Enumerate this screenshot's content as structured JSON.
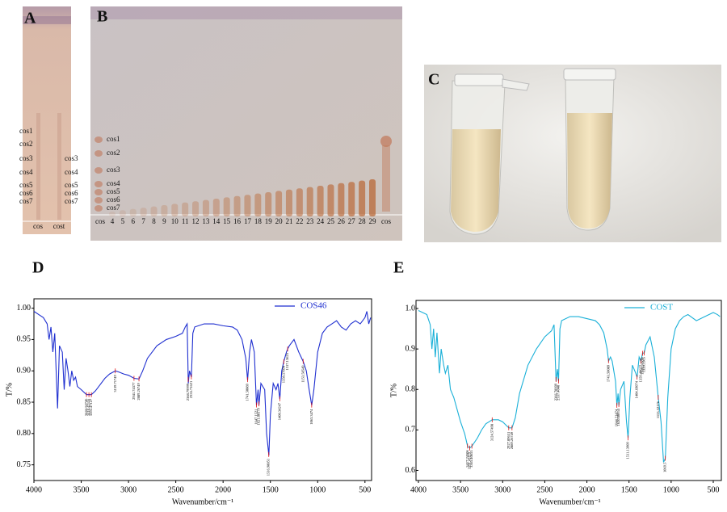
{
  "panels": {
    "A": {
      "label": "A",
      "left_labels": [
        "cos1",
        "cos2",
        "cos3",
        "cos4",
        "cos5",
        "cos6",
        "cos7"
      ],
      "right_labels": [
        "cos3",
        "cos4",
        "cos5",
        "cos6",
        "cos7"
      ],
      "lanes": [
        "cos",
        "cost"
      ]
    },
    "B": {
      "label": "B",
      "labels": [
        "cos1",
        "cos2",
        "cos3",
        "cos4",
        "cos5",
        "cos6",
        "cos7"
      ],
      "lanes": [
        "cos",
        "4",
        "5",
        "6",
        "7",
        "8",
        "9",
        "10",
        "11",
        "12",
        "13",
        "14",
        "15",
        "16",
        "17",
        "18",
        "19",
        "20",
        "21",
        "22",
        "23",
        "24",
        "25",
        "26",
        "27",
        "28",
        "29",
        "cos"
      ]
    },
    "C": {
      "label": "C"
    }
  },
  "chart_data": [
    {
      "type": "line",
      "panel": "D",
      "xlabel": "Wavenumber/cm⁻¹",
      "ylabel": "T/%",
      "xlim": [
        4000,
        430
      ],
      "ylim": [
        0.725,
        1.015
      ],
      "xticks": [
        4000,
        3500,
        3000,
        2500,
        2000,
        1500,
        1000,
        500
      ],
      "yticks": [
        0.75,
        {
          "value": 0.8,
          "label": "0.80"
        },
        0.85,
        {
          "value": 0.9,
          "label": "0.90"
        },
        0.95,
        {
          "value": 1,
          "label": "1.00"
        }
      ],
      "legend": "top-right",
      "x": [
        4000,
        3950,
        3900,
        3860,
        3840,
        3820,
        3800,
        3780,
        3750,
        3730,
        3700,
        3680,
        3660,
        3640,
        3620,
        3600,
        3580,
        3560,
        3540,
        3500,
        3444,
        3418,
        3392,
        3350,
        3300,
        3250,
        3200,
        3139,
        3100,
        3050,
        3000,
        2941,
        2889,
        2850,
        2800,
        2700,
        2600,
        2500,
        2430,
        2400,
        2380,
        2368,
        2355,
        2335,
        2320,
        2300,
        2200,
        2100,
        2000,
        1900,
        1850,
        1800,
        1760,
        1741,
        1720,
        1700,
        1670,
        1647,
        1630,
        1621,
        1600,
        1560,
        1540,
        1516,
        1500,
        1470,
        1440,
        1420,
        1400,
        1380,
        1358,
        1330,
        1317,
        1300,
        1250,
        1200,
        1153,
        1120,
        1090,
        1063,
        1040,
        1000,
        950,
        900,
        850,
        800,
        750,
        700,
        650,
        600,
        550,
        500,
        480,
        460,
        440
      ],
      "series": [
        {
          "name": "COS46",
          "color": "#1f2fd0",
          "values": [
            0.995,
            0.99,
            0.985,
            0.975,
            0.95,
            0.97,
            0.93,
            0.96,
            0.84,
            0.94,
            0.93,
            0.87,
            0.92,
            0.9,
            0.875,
            0.9,
            0.885,
            0.89,
            0.875,
            0.87,
            0.862,
            0.862,
            0.862,
            0.868,
            0.878,
            0.888,
            0.895,
            0.9,
            0.898,
            0.895,
            0.893,
            0.888,
            0.887,
            0.9,
            0.92,
            0.94,
            0.95,
            0.955,
            0.96,
            0.97,
            0.975,
            0.88,
            0.9,
            0.89,
            0.96,
            0.97,
            0.975,
            0.975,
            0.972,
            0.97,
            0.965,
            0.95,
            0.92,
            0.885,
            0.93,
            0.95,
            0.93,
            0.845,
            0.87,
            0.845,
            0.88,
            0.87,
            0.8,
            0.765,
            0.83,
            0.88,
            0.87,
            0.88,
            0.855,
            0.9,
            0.915,
            0.93,
            0.935,
            0.94,
            0.95,
            0.93,
            0.915,
            0.9,
            0.87,
            0.845,
            0.87,
            0.93,
            0.96,
            0.97,
            0.975,
            0.98,
            0.97,
            0.965,
            0.975,
            0.98,
            0.975,
            0.985,
            0.995,
            0.975,
            0.985
          ]
        }
      ],
      "peak_labels": [
        3444.54746,
        3418.42316,
        3392.47127,
        3139.71749,
        2941.74377,
        2889.26749,
        2368.79999,
        2335.71621,
        1741.50089,
        1647.1521,
        1621.80179,
        1516.98051,
        1400.34247,
        1358.57894,
        1317.13625,
        1153.58549,
        1063.3474
      ]
    },
    {
      "type": "line",
      "panel": "E",
      "xlabel": "Wavenumber/cm⁻¹",
      "ylabel": "T/%",
      "xlim": [
        4000,
        404
      ],
      "ylim": [
        0.575,
        1.02
      ],
      "xticks": [
        4000,
        3500,
        3000,
        2500,
        2000,
        1500,
        1000,
        500
      ],
      "yticks": [
        0.6,
        0.7,
        0.8,
        0.9,
        {
          "value": 1,
          "label": "1.0"
        }
      ],
      "legend": "top-right",
      "x": [
        4000,
        3950,
        3900,
        3860,
        3840,
        3820,
        3800,
        3780,
        3750,
        3730,
        3700,
        3680,
        3650,
        3620,
        3580,
        3540,
        3500,
        3450,
        3417,
        3391,
        3365,
        3300,
        3250,
        3200,
        3124,
        3050,
        3000,
        2927,
        2889,
        2850,
        2800,
        2700,
        2600,
        2500,
        2420,
        2390,
        2366,
        2350,
        2337,
        2320,
        2300,
        2200,
        2100,
        2000,
        1900,
        1850,
        1800,
        1760,
        1743,
        1720,
        1700,
        1660,
        1644,
        1630,
        1620,
        1600,
        1560,
        1530,
        1511,
        1490,
        1460,
        1420,
        1404,
        1380,
        1359,
        1339,
        1320,
        1300,
        1250,
        1200,
        1153,
        1120,
        1090,
        1069,
        1040,
        1000,
        950,
        900,
        850,
        800,
        700,
        600,
        500,
        450,
        420
      ],
      "series": [
        {
          "name": "COST",
          "color": "#1ab0d8",
          "values": [
            0.995,
            0.99,
            0.985,
            0.96,
            0.9,
            0.95,
            0.88,
            0.94,
            0.84,
            0.9,
            0.86,
            0.84,
            0.86,
            0.8,
            0.78,
            0.75,
            0.72,
            0.69,
            0.66,
            0.655,
            0.66,
            0.68,
            0.7,
            0.715,
            0.725,
            0.725,
            0.72,
            0.705,
            0.705,
            0.73,
            0.79,
            0.86,
            0.9,
            0.93,
            0.945,
            0.96,
            0.82,
            0.85,
            0.82,
            0.95,
            0.97,
            0.98,
            0.98,
            0.975,
            0.97,
            0.96,
            0.94,
            0.9,
            0.87,
            0.88,
            0.87,
            0.82,
            0.76,
            0.79,
            0.76,
            0.8,
            0.82,
            0.72,
            0.68,
            0.78,
            0.86,
            0.84,
            0.83,
            0.88,
            0.87,
            0.89,
            0.89,
            0.91,
            0.93,
            0.88,
            0.78,
            0.72,
            0.62,
            0.63,
            0.78,
            0.9,
            0.95,
            0.97,
            0.98,
            0.985,
            0.97,
            0.98,
            0.99,
            0.985,
            0.98
          ]
        }
      ],
      "peak_labels": [
        3417.24506,
        3391.43119,
        3365.40653,
        3124.57498,
        2927.89651,
        2889.26749,
        2366.78999,
        2337.4048,
        1743.50089,
        1644.21474,
        1620.80954,
        1511.13909,
        1404.69074,
        1359.48657,
        1339.59559,
        1320.1565,
        1153.32176,
        1069.5
      ]
    }
  ]
}
